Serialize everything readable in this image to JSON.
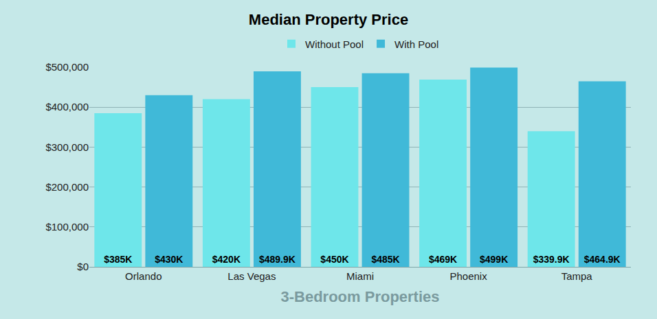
{
  "chart_data": {
    "type": "bar",
    "title": "Median Property Price",
    "x_label": "3-Bedroom Properties",
    "categories": [
      "Orlando",
      "Las Vegas",
      "Miami",
      "Phoenix",
      "Tampa"
    ],
    "series": [
      {
        "name": "Without Pool",
        "color": "#6ee6ea",
        "values": [
          385000,
          420000,
          450000,
          469000,
          339900
        ],
        "value_labels": [
          "$385K",
          "$420K",
          "$450K",
          "$469K",
          "$339.9K"
        ]
      },
      {
        "name": "With Pool",
        "color": "#40b9d8",
        "values": [
          430000,
          489900,
          485000,
          499000,
          464900
        ],
        "value_labels": [
          "$430K",
          "$489.9K",
          "$485K",
          "$499K",
          "$464.9K"
        ]
      }
    ],
    "ylim": [
      0,
      500000
    ],
    "yticks": [
      {
        "value": 0,
        "label": "$0"
      },
      {
        "value": 100000,
        "label": "$100,000"
      },
      {
        "value": 200000,
        "label": "$200,000"
      },
      {
        "value": 300000,
        "label": "$300,000"
      },
      {
        "value": 400000,
        "label": "$400,000"
      },
      {
        "value": 500000,
        "label": "$500,000"
      }
    ],
    "grid": true,
    "legend": "top",
    "data_labels": true
  }
}
